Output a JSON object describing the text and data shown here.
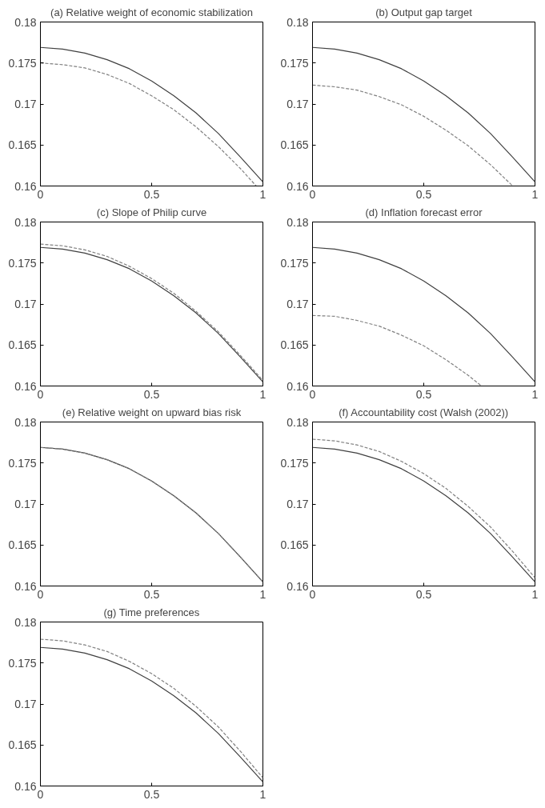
{
  "chart_data": [
    {
      "type": "line",
      "title": "(a) Relative weight of economic stabilization",
      "xlim": [
        0,
        1
      ],
      "ylim": [
        0.16,
        0.18
      ],
      "xticks": [
        0,
        0.5,
        1
      ],
      "yticks": [
        0.16,
        0.165,
        0.17,
        0.175,
        0.18
      ],
      "grid": false,
      "series": [
        {
          "color": "#404040",
          "line_style": "solid",
          "x": [
            0,
            0.1,
            0.2,
            0.3,
            0.4,
            0.5,
            0.6,
            0.7,
            0.8,
            0.9,
            1
          ],
          "values": [
            0.1769,
            0.1767,
            0.1762,
            0.1754,
            0.1743,
            0.1728,
            0.171,
            0.1689,
            0.1664,
            0.1635,
            0.1605
          ]
        },
        {
          "color": "#808080",
          "line_style": "dashed",
          "x": [
            0,
            0.1,
            0.2,
            0.3,
            0.4,
            0.5,
            0.6,
            0.7,
            0.8,
            0.9,
            0.97
          ],
          "values": [
            0.175,
            0.1748,
            0.1744,
            0.1736,
            0.1725,
            0.171,
            0.1693,
            0.1672,
            0.1648,
            0.1621,
            0.16
          ]
        }
      ]
    },
    {
      "type": "line",
      "title": "(b) Output gap target",
      "xlim": [
        0,
        1
      ],
      "ylim": [
        0.16,
        0.18
      ],
      "xticks": [
        0,
        0.5,
        1
      ],
      "yticks": [
        0.16,
        0.165,
        0.17,
        0.175,
        0.18
      ],
      "grid": false,
      "series": [
        {
          "color": "#404040",
          "line_style": "solid",
          "x": [
            0,
            0.1,
            0.2,
            0.3,
            0.4,
            0.5,
            0.6,
            0.7,
            0.8,
            0.9,
            1
          ],
          "values": [
            0.1769,
            0.1767,
            0.1762,
            0.1754,
            0.1743,
            0.1728,
            0.171,
            0.1689,
            0.1664,
            0.1635,
            0.1605
          ]
        },
        {
          "color": "#808080",
          "line_style": "dashed",
          "x": [
            0,
            0.1,
            0.2,
            0.3,
            0.4,
            0.5,
            0.6,
            0.7,
            0.8,
            0.9
          ],
          "values": [
            0.1723,
            0.1721,
            0.1717,
            0.1709,
            0.1699,
            0.1685,
            0.1668,
            0.1649,
            0.1626,
            0.16
          ]
        }
      ]
    },
    {
      "type": "line",
      "title": "(c) Slope of Philip curve",
      "xlim": [
        0,
        1
      ],
      "ylim": [
        0.16,
        0.18
      ],
      "xticks": [
        0,
        0.5,
        1
      ],
      "yticks": [
        0.16,
        0.165,
        0.17,
        0.175,
        0.18
      ],
      "grid": false,
      "series": [
        {
          "color": "#404040",
          "line_style": "solid",
          "x": [
            0,
            0.1,
            0.2,
            0.3,
            0.4,
            0.5,
            0.6,
            0.7,
            0.8,
            0.9,
            1
          ],
          "values": [
            0.1769,
            0.1767,
            0.1762,
            0.1754,
            0.1743,
            0.1728,
            0.171,
            0.1689,
            0.1664,
            0.1635,
            0.1605
          ]
        },
        {
          "color": "#808080",
          "line_style": "dashed",
          "x": [
            0,
            0.1,
            0.2,
            0.3,
            0.4,
            0.5,
            0.6,
            0.7,
            0.8,
            0.9,
            1
          ],
          "values": [
            0.1773,
            0.1771,
            0.1766,
            0.1758,
            0.1746,
            0.1731,
            0.1713,
            0.1691,
            0.1666,
            0.1637,
            0.1607
          ]
        }
      ]
    },
    {
      "type": "line",
      "title": "(d) Inflation forecast error",
      "xlim": [
        0,
        1
      ],
      "ylim": [
        0.16,
        0.18
      ],
      "xticks": [
        0,
        0.5,
        1
      ],
      "yticks": [
        0.16,
        0.165,
        0.17,
        0.175,
        0.18
      ],
      "grid": false,
      "series": [
        {
          "color": "#404040",
          "line_style": "solid",
          "x": [
            0,
            0.1,
            0.2,
            0.3,
            0.4,
            0.5,
            0.6,
            0.7,
            0.8,
            0.9,
            1
          ],
          "values": [
            0.1769,
            0.1767,
            0.1762,
            0.1754,
            0.1743,
            0.1728,
            0.171,
            0.1689,
            0.1664,
            0.1635,
            0.1605
          ]
        },
        {
          "color": "#808080",
          "line_style": "dashed",
          "x": [
            0,
            0.1,
            0.2,
            0.3,
            0.4,
            0.5,
            0.6,
            0.7,
            0.76
          ],
          "values": [
            0.1686,
            0.1685,
            0.168,
            0.1673,
            0.1662,
            0.1649,
            0.1632,
            0.1613,
            0.16
          ]
        }
      ]
    },
    {
      "type": "line",
      "title": "(e) Relative weight on upward bias risk",
      "xlim": [
        0,
        1
      ],
      "ylim": [
        0.16,
        0.18
      ],
      "xticks": [
        0,
        0.5,
        1
      ],
      "yticks": [
        0.16,
        0.165,
        0.17,
        0.175,
        0.18
      ],
      "grid": false,
      "series": [
        {
          "color": "#404040",
          "line_style": "solid",
          "x": [
            0,
            0.1,
            0.2,
            0.3,
            0.4,
            0.5,
            0.6,
            0.7,
            0.8,
            0.9,
            1
          ],
          "values": [
            0.1769,
            0.1767,
            0.1762,
            0.1754,
            0.1743,
            0.1728,
            0.171,
            0.1689,
            0.1664,
            0.1635,
            0.1605
          ]
        },
        {
          "color": "#808080",
          "line_style": "dashed",
          "x": [
            0,
            0.1,
            0.2,
            0.3,
            0.4,
            0.5,
            0.6,
            0.7,
            0.8,
            0.9,
            1
          ],
          "values": [
            0.1769,
            0.1767,
            0.1762,
            0.1754,
            0.1743,
            0.1728,
            0.171,
            0.1689,
            0.1664,
            0.1635,
            0.1605
          ]
        }
      ]
    },
    {
      "type": "line",
      "title": "(f) Accountability cost (Walsh (2002))",
      "xlim": [
        0,
        1
      ],
      "ylim": [
        0.16,
        0.18
      ],
      "xticks": [
        0,
        0.5,
        1
      ],
      "yticks": [
        0.16,
        0.165,
        0.17,
        0.175,
        0.18
      ],
      "grid": false,
      "series": [
        {
          "color": "#404040",
          "line_style": "solid",
          "x": [
            0,
            0.1,
            0.2,
            0.3,
            0.4,
            0.5,
            0.6,
            0.7,
            0.8,
            0.9,
            1
          ],
          "values": [
            0.1769,
            0.1767,
            0.1762,
            0.1754,
            0.1743,
            0.1728,
            0.171,
            0.1689,
            0.1664,
            0.1635,
            0.1605
          ]
        },
        {
          "color": "#808080",
          "line_style": "dashed",
          "x": [
            0,
            0.1,
            0.2,
            0.3,
            0.4,
            0.5,
            0.6,
            0.7,
            0.8,
            0.9,
            1
          ],
          "values": [
            0.1779,
            0.1777,
            0.1772,
            0.1764,
            0.1752,
            0.1737,
            0.1719,
            0.1697,
            0.1672,
            0.1642,
            0.161
          ]
        }
      ]
    },
    {
      "type": "line",
      "title": "(g) Time preferences",
      "xlim": [
        0,
        1
      ],
      "ylim": [
        0.16,
        0.18
      ],
      "xticks": [
        0,
        0.5,
        1
      ],
      "yticks": [
        0.16,
        0.165,
        0.17,
        0.175,
        0.18
      ],
      "grid": false,
      "series": [
        {
          "color": "#404040",
          "line_style": "solid",
          "x": [
            0,
            0.1,
            0.2,
            0.3,
            0.4,
            0.5,
            0.6,
            0.7,
            0.8,
            0.9,
            1
          ],
          "values": [
            0.1769,
            0.1767,
            0.1762,
            0.1754,
            0.1743,
            0.1728,
            0.171,
            0.1689,
            0.1664,
            0.1635,
            0.1605
          ]
        },
        {
          "color": "#808080",
          "line_style": "dashed",
          "x": [
            0,
            0.1,
            0.2,
            0.3,
            0.4,
            0.5,
            0.6,
            0.7,
            0.8,
            0.9,
            1
          ],
          "values": [
            0.1779,
            0.1777,
            0.1772,
            0.1764,
            0.1752,
            0.1737,
            0.1719,
            0.1697,
            0.1672,
            0.1642,
            0.161
          ]
        }
      ]
    }
  ]
}
